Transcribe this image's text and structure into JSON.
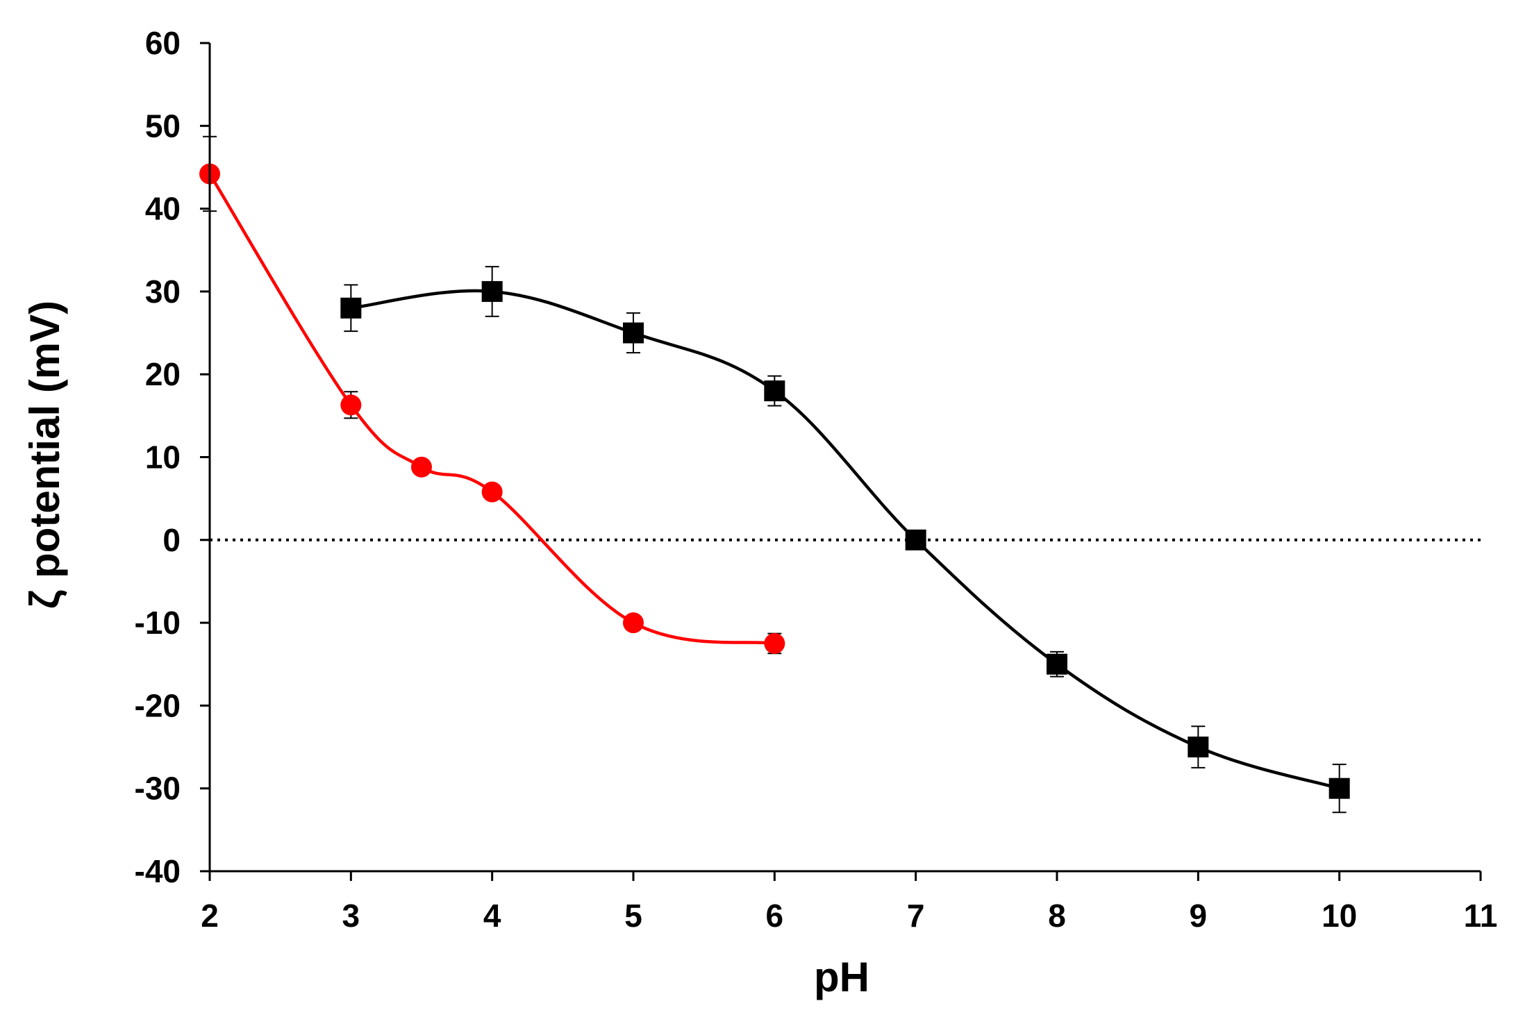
{
  "chart_data": {
    "type": "line",
    "xlabel": "pH",
    "ylabel": "ζ potential (mV)",
    "xlim": [
      2,
      11
    ],
    "ylim": [
      -40,
      60
    ],
    "xticks": [
      2,
      3,
      4,
      5,
      6,
      7,
      8,
      9,
      10,
      11
    ],
    "yticks": [
      60,
      50,
      40,
      30,
      20,
      10,
      0,
      -10,
      -20,
      -30,
      -40
    ],
    "grid": false,
    "legend": "none",
    "reference_line": {
      "y": 0,
      "style": "dotted",
      "color": "#000000"
    },
    "series": [
      {
        "marker": "square",
        "color": "#000000",
        "x": [
          3,
          4,
          5,
          6,
          7,
          8,
          9,
          10
        ],
        "y": [
          28,
          30,
          25,
          18,
          0,
          -15,
          -25,
          -30
        ],
        "error": [
          2.8,
          3,
          2.4,
          1.8,
          0,
          1.5,
          2.5,
          2.9
        ]
      },
      {
        "marker": "circle",
        "color": "#ff0000",
        "x": [
          2,
          3,
          3.5,
          4,
          5,
          6
        ],
        "y": [
          44.2,
          16.3,
          8.8,
          5.8,
          -10,
          -12.5
        ],
        "error": [
          4.5,
          1.6,
          0,
          0,
          0,
          1.2
        ]
      }
    ]
  }
}
